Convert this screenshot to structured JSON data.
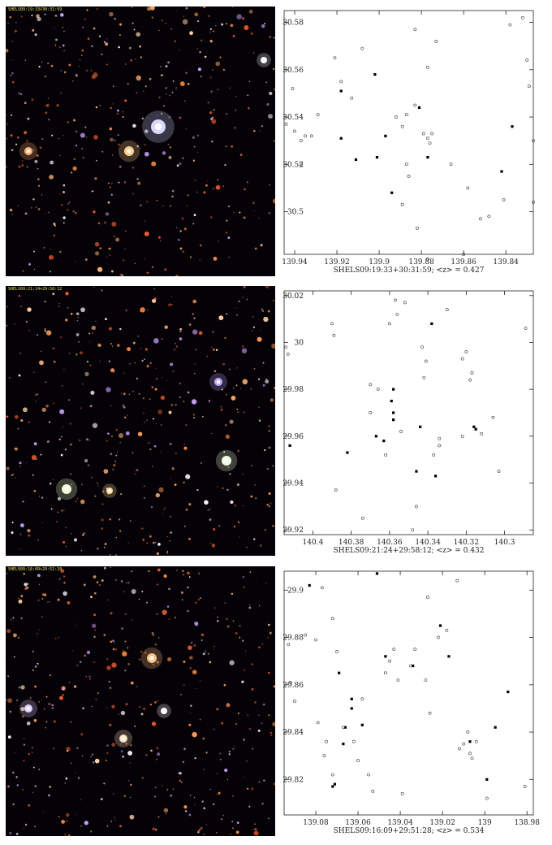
{
  "panels": [
    {
      "image_label": "SHELS09:19:33+30:31:59",
      "chart_data": {
        "type": "scatter",
        "xlim": [
          139.945,
          139.827
        ],
        "ylim": [
          30.482,
          30.585
        ],
        "xticks": [
          139.94,
          139.92,
          139.9,
          139.88,
          139.86,
          139.84
        ],
        "xtick_labels": [
          "139.94",
          "139.92",
          "139.9",
          "139.88",
          "139.86",
          "139.84"
        ],
        "yticks": [
          30.5,
          30.52,
          30.54,
          30.56,
          30.58
        ],
        "ytick_labels": [
          "30.5",
          "30.52",
          "30.54",
          "30.56",
          "30.58"
        ],
        "xlabel": "SHELS09:19:33+30:31:59; <z> = 0.427",
        "series": [
          {
            "filled": true,
            "points": [
              [
                139.918,
                30.551
              ],
              [
                139.902,
                30.558
              ],
              [
                139.881,
                30.544
              ],
              [
                139.897,
                30.532
              ],
              [
                139.918,
                30.531
              ],
              [
                139.911,
                30.522
              ],
              [
                139.901,
                30.523
              ],
              [
                139.877,
                30.523
              ],
              [
                139.894,
                30.508
              ],
              [
                139.842,
                30.517
              ],
              [
                139.837,
                30.536
              ]
            ]
          },
          {
            "filled": false,
            "points": [
              [
                139.944,
                30.537
              ],
              [
                139.941,
                30.552
              ],
              [
                139.94,
                30.534
              ],
              [
                139.937,
                30.53
              ],
              [
                139.935,
                30.532
              ],
              [
                139.932,
                30.532
              ],
              [
                139.937,
                30.52
              ],
              [
                139.929,
                30.541
              ],
              [
                139.921,
                30.565
              ],
              [
                139.918,
                30.555
              ],
              [
                139.913,
                30.548
              ],
              [
                139.908,
                30.569
              ],
              [
                139.892,
                30.54
              ],
              [
                139.889,
                30.536
              ],
              [
                139.887,
                30.541
              ],
              [
                139.883,
                30.545
              ],
              [
                139.877,
                30.531
              ],
              [
                139.875,
                30.533
              ],
              [
                139.879,
                30.533
              ],
              [
                139.876,
                30.529
              ],
              [
                139.887,
                30.52
              ],
              [
                139.886,
                30.515
              ],
              [
                139.889,
                30.503
              ],
              [
                139.883,
                30.577
              ],
              [
                139.877,
                30.561
              ],
              [
                139.873,
                30.572
              ],
              [
                139.866,
                30.52
              ],
              [
                139.858,
                30.51
              ],
              [
                139.852,
                30.497
              ],
              [
                139.848,
                30.498
              ],
              [
                139.841,
                30.505
              ],
              [
                139.838,
                30.579
              ],
              [
                139.832,
                30.582
              ],
              [
                139.83,
                30.564
              ],
              [
                139.829,
                30.553
              ],
              [
                139.827,
                30.53
              ],
              [
                139.827,
                30.504
              ],
              [
                139.882,
                30.493
              ],
              [
                139.877,
                30.48
              ],
              [
                139.86,
                30.482
              ]
            ]
          }
        ]
      }
    },
    {
      "image_label": "SHELS09:21:24+29:58:12",
      "chart_data": {
        "type": "scatter",
        "xlim": [
          140.415,
          140.285
        ],
        "ylim": [
          29.918,
          30.022
        ],
        "xticks": [
          140.4,
          140.38,
          140.36,
          140.34,
          140.32,
          140.3
        ],
        "xtick_labels": [
          "140.4",
          "140.38",
          "140.36",
          "140.34",
          "140.32",
          "140.3"
        ],
        "yticks": [
          29.92,
          29.94,
          29.96,
          29.98,
          30,
          30.02
        ],
        "ytick_labels": [
          "29.92",
          "29.94",
          "29.96",
          "29.98",
          "30",
          "30.02"
        ],
        "xlabel": "SHELS09:21:24+29:58:12; <z> = 0.432",
        "series": [
          {
            "filled": true,
            "points": [
              [
                140.412,
                29.956
              ],
              [
                140.382,
                29.953
              ],
              [
                140.367,
                29.96
              ],
              [
                140.363,
                29.958
              ],
              [
                140.358,
                29.98
              ],
              [
                140.359,
                29.975
              ],
              [
                140.358,
                29.97
              ],
              [
                140.358,
                29.967
              ],
              [
                140.344,
                29.964
              ],
              [
                140.346,
                29.945
              ],
              [
                140.336,
                29.943
              ],
              [
                140.338,
                30.008
              ],
              [
                140.316,
                29.964
              ],
              [
                140.315,
                29.963
              ]
            ]
          },
          {
            "filled": false,
            "points": [
              [
                140.414,
                29.998
              ],
              [
                140.413,
                29.995
              ],
              [
                140.39,
                30.008
              ],
              [
                140.389,
                30.003
              ],
              [
                140.388,
                29.937
              ],
              [
                140.374,
                29.925
              ],
              [
                140.37,
                29.97
              ],
              [
                140.37,
                29.982
              ],
              [
                140.366,
                29.98
              ],
              [
                140.36,
                30.008
              ],
              [
                140.356,
                30.012
              ],
              [
                140.357,
                30.018
              ],
              [
                140.352,
                30.017
              ],
              [
                140.354,
                29.962
              ],
              [
                140.362,
                29.952
              ],
              [
                140.343,
                29.998
              ],
              [
                140.342,
                29.985
              ],
              [
                140.341,
                29.992
              ],
              [
                140.337,
                29.952
              ],
              [
                140.334,
                29.959
              ],
              [
                140.334,
                29.956
              ],
              [
                140.33,
                30.014
              ],
              [
                140.322,
                29.993
              ],
              [
                140.32,
                29.996
              ],
              [
                140.317,
                29.987
              ],
              [
                140.318,
                29.984
              ],
              [
                140.312,
                29.961
              ],
              [
                140.306,
                29.968
              ],
              [
                140.303,
                29.945
              ],
              [
                140.289,
                30.006
              ],
              [
                140.322,
                29.96
              ],
              [
                140.346,
                29.93
              ],
              [
                140.348,
                29.92
              ]
            ]
          }
        ]
      }
    },
    {
      "image_label": "SHELS09:16:09+29:51:28",
      "chart_data": {
        "type": "scatter",
        "xlim": [
          139.095,
          138.977
        ],
        "ylim": [
          29.805,
          29.908
        ],
        "xticks": [
          139.08,
          139.06,
          139.04,
          139.02,
          139,
          138.98
        ],
        "xtick_labels": [
          "139.08",
          "139.06",
          "139.04",
          "139.02",
          "139",
          "138.98"
        ],
        "yticks": [
          29.82,
          29.84,
          29.86,
          29.88,
          29.9
        ],
        "ytick_labels": [
          "29.82",
          "29.84",
          "29.86",
          "29.88",
          "29.9"
        ],
        "xlabel": "SHELS09:16:09+29:51:28; <z> = 0.534",
        "series": [
          {
            "filled": true,
            "points": [
              [
                139.083,
                29.902
              ],
              [
                139.051,
                29.907
              ],
              [
                139.069,
                29.865
              ],
              [
                139.063,
                29.854
              ],
              [
                139.063,
                29.85
              ],
              [
                139.066,
                29.842
              ],
              [
                139.067,
                29.835
              ],
              [
                139.058,
                29.843
              ],
              [
                139.047,
                29.872
              ],
              [
                139.034,
                29.868
              ],
              [
                139.021,
                29.885
              ],
              [
                139.017,
                29.872
              ],
              [
                138.995,
                29.842
              ],
              [
                138.989,
                29.857
              ],
              [
                139.007,
                29.836
              ],
              [
                138.999,
                29.82
              ],
              [
                139.071,
                29.818
              ],
              [
                139.072,
                29.817
              ]
            ]
          },
          {
            "filled": false,
            "points": [
              [
                139.093,
                29.877
              ],
              [
                139.092,
                29.861
              ],
              [
                139.09,
                29.853
              ],
              [
                139.085,
                29.881
              ],
              [
                139.08,
                29.879
              ],
              [
                139.077,
                29.901
              ],
              [
                139.072,
                29.888
              ],
              [
                139.07,
                29.874
              ],
              [
                139.075,
                29.836
              ],
              [
                139.076,
                29.83
              ],
              [
                139.079,
                29.844
              ],
              [
                139.072,
                29.822
              ],
              [
                139.067,
                29.842
              ],
              [
                139.058,
                29.854
              ],
              [
                139.06,
                29.828
              ],
              [
                139.055,
                29.822
              ],
              [
                139.053,
                29.815
              ],
              [
                139.047,
                29.865
              ],
              [
                139.045,
                29.87
              ],
              [
                139.043,
                29.875
              ],
              [
                139.041,
                29.862
              ],
              [
                139.035,
                29.868
              ],
              [
                139.033,
                29.875
              ],
              [
                139.028,
                29.862
              ],
              [
                139.026,
                29.848
              ],
              [
                139.027,
                29.897
              ],
              [
                139.022,
                29.88
              ],
              [
                139.018,
                29.883
              ],
              [
                139.013,
                29.904
              ],
              [
                139.012,
                29.833
              ],
              [
                139.01,
                29.835
              ],
              [
                139.007,
                29.831
              ],
              [
                139.006,
                29.829
              ],
              [
                139.008,
                29.84
              ],
              [
                139.004,
                29.836
              ],
              [
                138.981,
                29.817
              ],
              [
                138.999,
                29.812
              ],
              [
                139.039,
                29.814
              ],
              [
                139.062,
                29.836
              ]
            ]
          }
        ]
      }
    }
  ]
}
